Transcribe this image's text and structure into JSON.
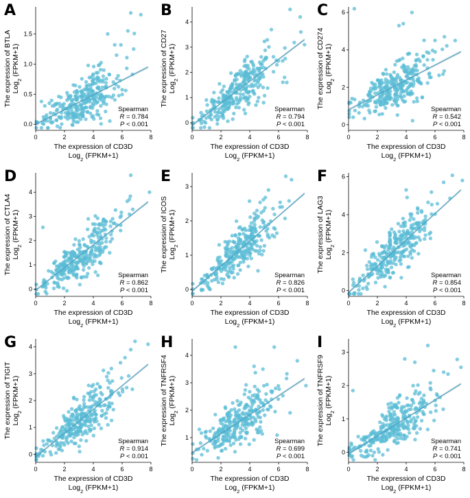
{
  "chart_data": [
    {
      "panel": "A",
      "type": "scatter",
      "xlabel": "The expression of CD3D",
      "xlabel_sub": "Log",
      "xlabel_unit": " (FPKM+1)",
      "ylabel": "The expression of BTLA",
      "ylabel_sub": "Log",
      "ylabel_unit": " (FPKM+1)",
      "xticks": [
        "0",
        "2",
        "4",
        "6",
        "8"
      ],
      "yticks": [
        "0.0",
        "0.5",
        "1.0",
        "1.5"
      ],
      "xlim": [
        0,
        8
      ],
      "ylim": [
        -0.1,
        1.95
      ],
      "fit": {
        "x0": 0,
        "y0": 0.0,
        "x1": 7.8,
        "y1": 0.95
      },
      "stat_method": "Spearman",
      "r_label": "R",
      "r_value": "= 0.784",
      "p_label": "P",
      "p_value": "< 0.001",
      "highlights": [
        [
          6.6,
          1.85
        ],
        [
          7.3,
          1.82
        ],
        [
          6.4,
          1.55
        ],
        [
          6.8,
          1.25
        ],
        [
          5.0,
          1.5
        ],
        [
          0.4,
          0.38
        ],
        [
          4.5,
          0.1
        ]
      ]
    },
    {
      "panel": "B",
      "type": "scatter",
      "xlabel": "The expression of CD3D",
      "xlabel_sub": "Log",
      "xlabel_unit": " (FPKM+1)",
      "ylabel": "The expression of CD27",
      "ylabel_sub": "Log",
      "ylabel_unit": " (FPKM+1)",
      "xticks": [
        "0",
        "2",
        "4",
        "6",
        "8"
      ],
      "yticks": [
        "0",
        "1",
        "2",
        "3",
        "4"
      ],
      "xlim": [
        0,
        8
      ],
      "ylim": [
        -0.3,
        4.6
      ],
      "fit": {
        "x0": 0,
        "y0": -0.1,
        "x1": 7.8,
        "y1": 3.3
      },
      "stat_method": "Spearman",
      "r_label": "R",
      "r_value": "= 0.794",
      "p_label": "P",
      "p_value": "< 0.001",
      "highlights": [
        [
          6.8,
          4.5
        ],
        [
          7.5,
          4.2
        ],
        [
          5.5,
          3.7
        ],
        [
          7.8,
          3.1
        ],
        [
          0.8,
          0.3
        ]
      ]
    },
    {
      "panel": "C",
      "type": "scatter",
      "xlabel": "The expression of CD3D",
      "xlabel_sub": "Log",
      "xlabel_unit": " (FPKM+1)",
      "ylabel": "The expression of CD274",
      "ylabel_sub": "Log",
      "ylabel_unit": " (FPKM+1)",
      "xticks": [
        "0",
        "2",
        "4",
        "6",
        "8"
      ],
      "yticks": [
        "0",
        "2",
        "4",
        "6"
      ],
      "xlim": [
        0,
        8
      ],
      "ylim": [
        -0.3,
        6.3
      ],
      "fit": {
        "x0": 0,
        "y0": 0.8,
        "x1": 7.8,
        "y1": 3.9
      },
      "stat_method": "Spearman",
      "r_label": "R",
      "r_value": "= 0.542",
      "p_label": "P",
      "p_value": "< 0.001",
      "highlights": [
        [
          0.4,
          6.2
        ],
        [
          4.4,
          6.0
        ],
        [
          3.5,
          5.3
        ],
        [
          3.8,
          5.4
        ],
        [
          7.4,
          4.5
        ]
      ]
    },
    {
      "panel": "D",
      "type": "scatter",
      "xlabel": "The expression of CD3D",
      "xlabel_sub": "Log",
      "xlabel_unit": " (FPKM+1)",
      "ylabel": "The expression of CTLA4",
      "ylabel_sub": "Log",
      "ylabel_unit": " (FPKM+1)",
      "xticks": [
        "0",
        "2",
        "4",
        "6",
        "8"
      ],
      "yticks": [
        "0",
        "1",
        "2",
        "3",
        "4"
      ],
      "xlim": [
        0,
        8
      ],
      "ylim": [
        -0.3,
        4.8
      ],
      "fit": {
        "x0": 0,
        "y0": -0.05,
        "x1": 7.8,
        "y1": 3.6
      },
      "stat_method": "Spearman",
      "r_label": "R",
      "r_value": "= 0.862",
      "p_label": "P",
      "p_value": "< 0.001",
      "highlights": [
        [
          6.6,
          4.7
        ],
        [
          7.9,
          4.0
        ],
        [
          0.5,
          2.55
        ],
        [
          6.5,
          3.7
        ]
      ]
    },
    {
      "panel": "E",
      "type": "scatter",
      "xlabel": "The expression of CD3D",
      "xlabel_sub": "Log",
      "xlabel_unit": " (FPKM+1)",
      "ylabel": "The expression of ICOS",
      "ylabel_sub": "Log",
      "ylabel_unit": " (FPKM+1)",
      "xticks": [
        "0",
        "2",
        "4",
        "6",
        "8"
      ],
      "yticks": [
        "0",
        "1",
        "2",
        "3"
      ],
      "xlim": [
        0,
        8
      ],
      "ylim": [
        -0.2,
        3.4
      ],
      "fit": {
        "x0": 0,
        "y0": -0.05,
        "x1": 7.8,
        "y1": 2.8
      },
      "stat_method": "Spearman",
      "r_label": "R",
      "r_value": "= 0.826",
      "p_label": "P",
      "p_value": "< 0.001",
      "highlights": [
        [
          6.5,
          3.3
        ],
        [
          6.9,
          3.2
        ],
        [
          5.3,
          2.9
        ],
        [
          4.5,
          2.3
        ]
      ]
    },
    {
      "panel": "F",
      "type": "scatter",
      "xlabel": "The expression of CD3D",
      "xlabel_sub": "Log",
      "xlabel_unit": " (FPKM+1)",
      "ylabel": "The expression of LAG3",
      "ylabel_sub": "Log",
      "ylabel_unit": " (FPKM+1)",
      "xticks": [
        "0",
        "2",
        "4",
        "6",
        "8"
      ],
      "yticks": [
        "0",
        "2",
        "4",
        "6"
      ],
      "xlim": [
        0,
        8
      ],
      "ylim": [
        -0.3,
        6.2
      ],
      "fit": {
        "x0": 0,
        "y0": -0.1,
        "x1": 7.8,
        "y1": 5.3
      },
      "stat_method": "Spearman",
      "r_label": "R",
      "r_value": "= 0.854",
      "p_label": "P",
      "p_value": "< 0.001",
      "highlights": [
        [
          7.9,
          5.8
        ],
        [
          6.6,
          5.7
        ],
        [
          4.0,
          5.3
        ],
        [
          0.3,
          0.6
        ]
      ]
    },
    {
      "panel": "G",
      "type": "scatter",
      "xlabel": "The expression of CD3D",
      "xlabel_sub": "Log",
      "xlabel_unit": " (FPKM+1)",
      "ylabel": "The expression of TIGIT",
      "ylabel_sub": "Log",
      "ylabel_unit": " (FPKM+1)",
      "xticks": [
        "0",
        "2",
        "4",
        "6",
        "8"
      ],
      "yticks": [
        "0",
        "1",
        "2",
        "3",
        "4"
      ],
      "xlim": [
        0,
        8
      ],
      "ylim": [
        -0.3,
        4.3
      ],
      "fit": {
        "x0": 0,
        "y0": -0.1,
        "x1": 7.8,
        "y1": 3.35
      },
      "stat_method": "Spearman",
      "r_label": "R",
      "r_value": "= 0.914",
      "p_label": "P",
      "p_value": "< 0.001",
      "highlights": [
        [
          7.8,
          4.1
        ],
        [
          6.6,
          3.9
        ],
        [
          6.2,
          3.6
        ]
      ]
    },
    {
      "panel": "H",
      "type": "scatter",
      "xlabel": "The expression of CD3D",
      "xlabel_sub": "Log",
      "xlabel_unit": " (FPKM+1)",
      "ylabel": "The expression of TNFRSF4",
      "ylabel_sub": "Log",
      "ylabel_unit": " (FPKM+1)",
      "xticks": [
        "0",
        "2",
        "4",
        "6",
        "8"
      ],
      "yticks": [
        "1",
        "2",
        "3",
        "4"
      ],
      "xlim": [
        0,
        8
      ],
      "ylim": [
        0.1,
        4.6
      ],
      "fit": {
        "x0": 0,
        "y0": 0.45,
        "x1": 7.8,
        "y1": 3.15
      },
      "stat_method": "Spearman",
      "r_label": "R",
      "r_value": "= 0.699",
      "p_label": "P",
      "p_value": "< 0.001",
      "highlights": [
        [
          3.0,
          4.3
        ],
        [
          5.7,
          4.3
        ],
        [
          4.3,
          3.6
        ],
        [
          7.3,
          3.8
        ],
        [
          0.5,
          1.3
        ]
      ]
    },
    {
      "panel": "I",
      "type": "scatter",
      "xlabel": "The expression of CD3D",
      "xlabel_sub": "Log",
      "xlabel_unit": " (FPKM+1)",
      "ylabel": "The expression of TNFRSF9",
      "ylabel_sub": "Log",
      "ylabel_unit": " (FPKM+1)",
      "xticks": [
        "0",
        "2",
        "4",
        "6",
        "8"
      ],
      "yticks": [
        "0",
        "1",
        "2",
        "3"
      ],
      "xlim": [
        0,
        8
      ],
      "ylim": [
        -0.3,
        3.4
      ],
      "fit": {
        "x0": 0,
        "y0": -0.05,
        "x1": 7.8,
        "y1": 2.05
      },
      "stat_method": "Spearman",
      "r_label": "R",
      "r_value": "= 0.741",
      "p_label": "P",
      "p_value": "< 0.001",
      "highlights": [
        [
          5.5,
          3.2
        ],
        [
          3.9,
          2.8
        ],
        [
          4.6,
          2.7
        ],
        [
          7.8,
          2.55
        ],
        [
          6.6,
          2.4
        ],
        [
          0.3,
          1.85
        ]
      ]
    }
  ],
  "style": {
    "point_color": "#5bbcd6",
    "fit_color": "#4aa3c4",
    "band_color": "#9aa4ad"
  }
}
